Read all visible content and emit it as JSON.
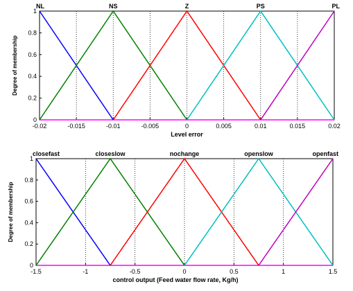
{
  "chart_data": [
    {
      "type": "line",
      "xlabel": "Level error",
      "ylabel": "Degree of membership",
      "xlim": [
        -0.02,
        0.02
      ],
      "ylim": [
        0,
        1
      ],
      "xticks": [
        "-0.02",
        "-0.015",
        "-0.01",
        "-0.005",
        "0",
        "0.005",
        "0.01",
        "0.015",
        "0.02"
      ],
      "yticks": [
        "0",
        "0.2",
        "0.4",
        "0.6",
        "0.8",
        "1"
      ],
      "grid": "vertical-dotted",
      "series": [
        {
          "name": "NL",
          "color": "#0000ff",
          "x": [
            -0.02,
            -0.01
          ],
          "y": [
            1,
            0
          ]
        },
        {
          "name": "NS",
          "color": "#008000",
          "x": [
            -0.02,
            -0.01,
            0
          ],
          "y": [
            0,
            1,
            0
          ]
        },
        {
          "name": "Z",
          "color": "#ff0000",
          "x": [
            -0.01,
            0,
            0.01
          ],
          "y": [
            0,
            1,
            0
          ]
        },
        {
          "name": "PS",
          "color": "#00bfbf",
          "x": [
            0,
            0.01,
            0.02
          ],
          "y": [
            0,
            1,
            0
          ]
        },
        {
          "name": "PL",
          "color": "#bf00bf",
          "x": [
            0.01,
            0.02
          ],
          "y": [
            0,
            1
          ]
        }
      ],
      "baseline": {
        "color": "#ff00ff",
        "x": [
          -0.02,
          0.02
        ],
        "y": [
          0,
          0
        ]
      }
    },
    {
      "type": "line",
      "xlabel": "control output (Feed water flow rate, Kg/h)",
      "ylabel": "Degree of membership",
      "xlim": [
        -1.5,
        1.5
      ],
      "ylim": [
        0,
        1
      ],
      "xticks": [
        "-1.5",
        "-1",
        "-0.5",
        "0",
        "0.5",
        "1",
        "1.5"
      ],
      "yticks": [
        "0",
        "0.2",
        "0.4",
        "0.6",
        "0.8",
        "1"
      ],
      "grid": "vertical-dotted",
      "series": [
        {
          "name": "closefast",
          "color": "#0000ff",
          "x": [
            -1.5,
            -0.75
          ],
          "y": [
            1,
            0
          ]
        },
        {
          "name": "closeslow",
          "color": "#008000",
          "x": [
            -1.5,
            -0.75,
            0
          ],
          "y": [
            0,
            1,
            0
          ]
        },
        {
          "name": "nochange",
          "color": "#ff0000",
          "x": [
            -0.75,
            0,
            0.75
          ],
          "y": [
            0,
            1,
            0
          ]
        },
        {
          "name": "openslow",
          "color": "#00bfbf",
          "x": [
            0,
            0.75,
            1.5
          ],
          "y": [
            0,
            1,
            0
          ]
        },
        {
          "name": "openfast",
          "color": "#bf00bf",
          "x": [
            0.75,
            1.5
          ],
          "y": [
            0,
            1
          ]
        }
      ],
      "baseline": {
        "color": "#ff00ff",
        "x": [
          -1.5,
          1.5
        ],
        "y": [
          0,
          0
        ]
      }
    }
  ]
}
